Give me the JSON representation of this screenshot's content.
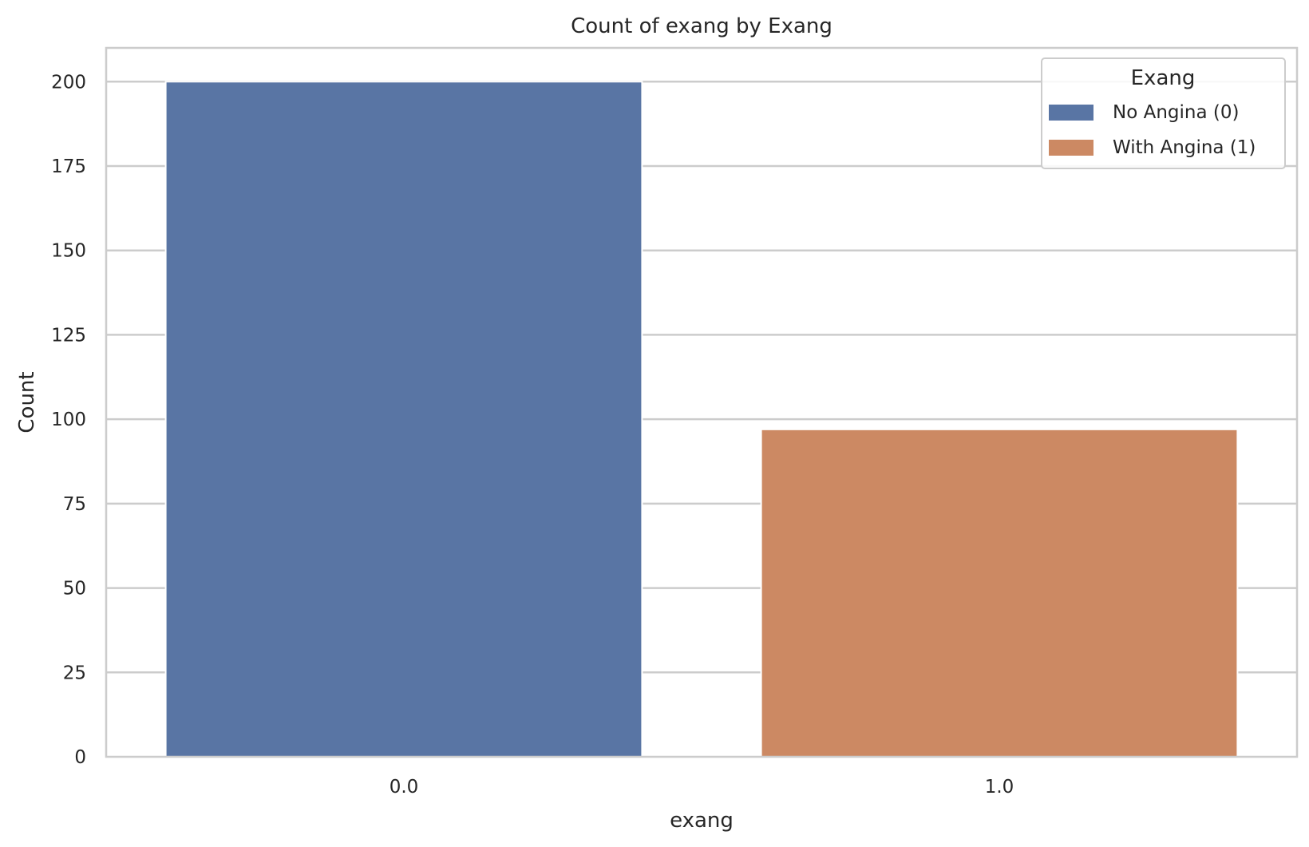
{
  "chart_data": {
    "type": "bar",
    "title": "Count of exang by Exang",
    "xlabel": "exang",
    "ylabel": "Count",
    "categories": [
      "0.0",
      "1.0"
    ],
    "series": [
      {
        "name": "No Angina (0)",
        "category": "0.0",
        "value": 200,
        "color": "#5975a4"
      },
      {
        "name": "With Angina (1)",
        "category": "1.0",
        "value": 97,
        "color": "#cc8963"
      }
    ],
    "ylim": [
      0,
      210
    ],
    "yticks": [
      0,
      25,
      50,
      75,
      100,
      125,
      150,
      175,
      200
    ],
    "grid": true,
    "legend": {
      "title": "Exang",
      "placement": "top-right"
    }
  }
}
